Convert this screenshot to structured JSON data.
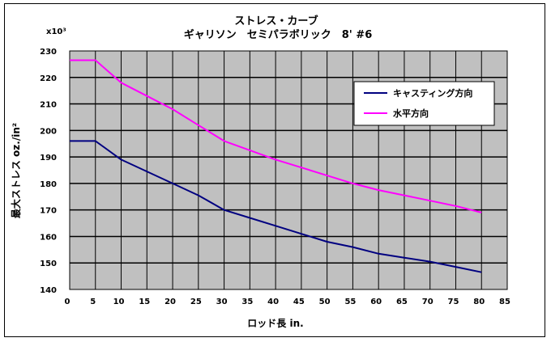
{
  "chart_data": {
    "type": "line",
    "title": "ストレス・カーブ",
    "subtitle": "ギャリソン　セミパラボリック　8' #6",
    "xlabel": "ロッド長 in.",
    "ylabel": "最大ストレス oz./in²",
    "y_multiplier": "x10³",
    "xlim": [
      0,
      85
    ],
    "ylim": [
      140,
      230
    ],
    "x_ticks": [
      0,
      5,
      10,
      15,
      20,
      25,
      30,
      35,
      40,
      45,
      50,
      55,
      60,
      65,
      70,
      75,
      80,
      85
    ],
    "y_ticks": [
      140,
      150,
      160,
      170,
      180,
      190,
      200,
      210,
      220,
      230
    ],
    "grid": true,
    "plot_background": "#c0c0c0",
    "legend_position": "top-right",
    "series": [
      {
        "name": "キャスティング方向",
        "color": "#000080",
        "x": [
          0,
          5,
          10,
          15,
          20,
          25,
          30,
          35,
          40,
          45,
          50,
          55,
          60,
          65,
          70,
          75,
          80
        ],
        "y": [
          196,
          196,
          189,
          184.5,
          180,
          175.5,
          170,
          167,
          164,
          161,
          158,
          156,
          153.5,
          152,
          150.5,
          148.5,
          146.5
        ]
      },
      {
        "name": "水平方向",
        "color": "#ff00ff",
        "x": [
          0,
          5,
          10,
          15,
          20,
          25,
          30,
          35,
          40,
          45,
          50,
          55,
          60,
          65,
          70,
          75,
          80
        ],
        "y": [
          226.5,
          226.5,
          218,
          213,
          208,
          202,
          196,
          192.5,
          189,
          186,
          183,
          180,
          177.5,
          175.5,
          173.5,
          171.5,
          169
        ]
      }
    ]
  }
}
